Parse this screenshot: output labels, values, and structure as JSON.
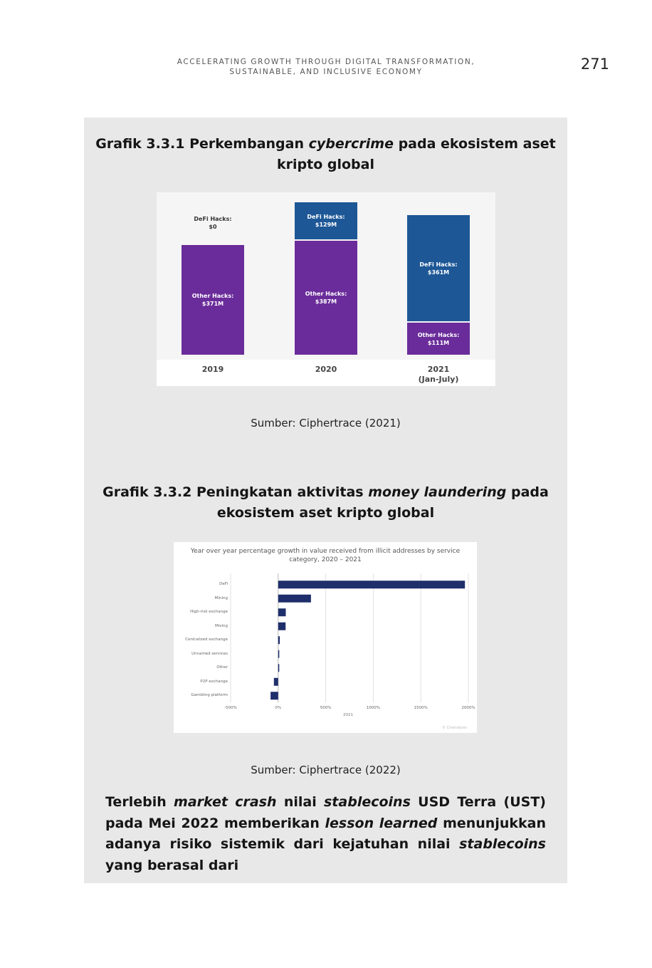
{
  "header": {
    "running_head_line1": "ACCELERATING GROWTH THROUGH DIGITAL TRANSFORMATION,",
    "running_head_line2": "SUSTAINABLE, AND INCLUSIVE ECONOMY",
    "page_number": "271"
  },
  "figure1": {
    "title_pre": "Grafik 3.3.1 Perkembangan ",
    "title_em": "cybercrime",
    "title_post": " pada ekosistem aset kripto global",
    "source": "Sumber: Ciphertrace (2021)"
  },
  "figure2": {
    "title_pre": "Grafik 3.3.2 Peningkatan aktivitas ",
    "title_em": "money laundering",
    "title_post": " pada ekosistem aset kripto global",
    "source": "Sumber: Ciphertrace (2022)"
  },
  "body": {
    "t1": "Terlebih ",
    "e1": "market crash",
    "t2": " nilai ",
    "e2": "stablecoins",
    "t3": " USD Terra (UST) pada Mei 2022 memberikan ",
    "e3": "lesson learned",
    "t4": " menunjukkan adanya risiko sistemik dari kejatuhan nilai ",
    "e4": "stablecoins",
    "t5": " yang berasal dari"
  },
  "colors": {
    "other_hacks": "#6a2c9a",
    "defi_hacks": "#1d5796",
    "hbar": "#1f2f6b",
    "panel": "#e8e8e8"
  },
  "chart_data": [
    {
      "type": "bar",
      "stacked": true,
      "categories": [
        "2019",
        "2020",
        "2021 (Jan-July)"
      ],
      "category_lines": [
        [
          "2019"
        ],
        [
          "2020"
        ],
        [
          "2021",
          "(Jan-July)"
        ]
      ],
      "series": [
        {
          "name": "Other Hacks",
          "values": [
            371,
            387,
            111
          ],
          "labels": [
            "Other Hacks:",
            "Other Hacks:",
            "Other Hacks:"
          ],
          "value_labels": [
            "$371M",
            "$387M",
            "$111M"
          ]
        },
        {
          "name": "DeFi Hacks",
          "values": [
            0,
            129,
            361
          ],
          "labels": [
            "DeFi Hacks:",
            "DeFi Hacks:",
            "DeFi Hacks:"
          ],
          "value_labels": [
            "$0",
            "$129M",
            "$361M"
          ]
        }
      ],
      "ylim": [
        0,
        520
      ],
      "grid": false,
      "legend": "none"
    },
    {
      "type": "bar",
      "orientation": "horizontal",
      "title": "Year over year percentage growth in value received from illicit addresses by service category, 2020 – 2021",
      "categories": [
        "DeFi",
        "Mining",
        "High-risk exchange",
        "Mixing",
        "Centralized exchange",
        "Unnamed services",
        "Other",
        "P2P exchange",
        "Gambling platform"
      ],
      "values": [
        1964,
        345,
        80,
        78,
        17,
        10,
        8,
        -45,
        -80
      ],
      "x_ticks": [
        -500,
        0,
        500,
        1000,
        1500,
        2000
      ],
      "x_tick_labels": [
        "-500%",
        "0%",
        "500%",
        "1000%",
        "1500%",
        "2000%"
      ],
      "xlim": [
        -500,
        2000
      ],
      "xlabel": "2021",
      "watermark": "© Chainalysis",
      "grid": true,
      "legend": "none"
    }
  ]
}
